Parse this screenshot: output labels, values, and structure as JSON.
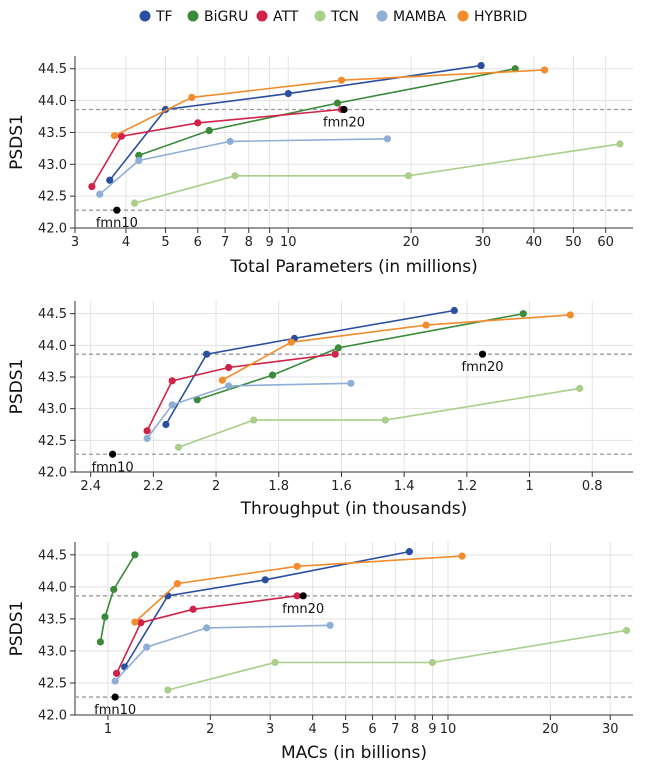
{
  "legend": [
    {
      "name": "TF",
      "color": "#2b4fa0"
    },
    {
      "name": "BiGRU",
      "color": "#3a8a3a"
    },
    {
      "name": "ATT",
      "color": "#d0234a"
    },
    {
      "name": "TCN",
      "color": "#a9cf8a"
    },
    {
      "name": "MAMBA",
      "color": "#8eaed6"
    },
    {
      "name": "HYBRID",
      "color": "#f28c2c"
    }
  ],
  "chart_data": [
    {
      "type": "line",
      "xscale": "log",
      "xreverse": false,
      "xlabel": "Total Parameters (in millions)",
      "ylabel": "PSDS1",
      "xlim": [
        3,
        70
      ],
      "ylim": [
        42.0,
        44.7
      ],
      "xticks": [
        3,
        4,
        5,
        6,
        7,
        8,
        9,
        10,
        20,
        30,
        40,
        50,
        60
      ],
      "xtick_labels": [
        "3",
        "4",
        "5",
        "6",
        "7",
        "8",
        "9",
        "10",
        "20",
        "30",
        "40",
        "50",
        "60"
      ],
      "yticks": [
        42.0,
        42.5,
        43.0,
        43.5,
        44.0,
        44.5
      ],
      "ytick_labels": [
        "42.0",
        "42.5",
        "43.0",
        "43.5",
        "44.0",
        "44.5"
      ],
      "grid": true,
      "hlines": [
        43.86,
        42.28
      ],
      "series": [
        {
          "name": "TF",
          "x": [
            3.65,
            5.0,
            10.0,
            29.7
          ],
          "y": [
            42.75,
            43.86,
            44.11,
            44.55
          ]
        },
        {
          "name": "BiGRU",
          "x": [
            4.3,
            6.4,
            13.2,
            36.0
          ],
          "y": [
            43.14,
            43.53,
            43.96,
            44.5
          ]
        },
        {
          "name": "ATT",
          "x": [
            3.3,
            3.9,
            6.0,
            13.5
          ],
          "y": [
            42.65,
            43.44,
            43.65,
            43.86
          ]
        },
        {
          "name": "TCN",
          "x": [
            4.2,
            7.4,
            19.7,
            65.0
          ],
          "y": [
            42.39,
            42.82,
            42.82,
            43.32
          ]
        },
        {
          "name": "MAMBA",
          "x": [
            3.45,
            4.3,
            7.2,
            17.5
          ],
          "y": [
            42.53,
            43.06,
            43.36,
            43.4
          ]
        },
        {
          "name": "HYBRID",
          "x": [
            3.75,
            5.8,
            13.5,
            42.5
          ],
          "y": [
            43.45,
            44.05,
            44.32,
            44.48
          ]
        }
      ],
      "annotations": [
        {
          "label": "fmn20",
          "x": 13.7,
          "y": 43.86
        },
        {
          "label": "fmn10",
          "x": 3.8,
          "y": 42.28
        }
      ]
    },
    {
      "type": "line",
      "xscale": "linear",
      "xreverse": true,
      "xlabel": "Throughput (in thousands)",
      "ylabel": "PSDS1",
      "xlim": [
        2.45,
        0.67
      ],
      "ylim": [
        42.0,
        44.7
      ],
      "xticks": [
        2.4,
        2.2,
        2.0,
        1.8,
        1.6,
        1.4,
        1.2,
        1.0,
        0.8
      ],
      "xtick_labels": [
        "2.4",
        "2.2",
        "2",
        "1.8",
        "1.6",
        "1.4",
        "1.2",
        "1",
        "0.8"
      ],
      "yticks": [
        42.0,
        42.5,
        43.0,
        43.5,
        44.0,
        44.5
      ],
      "ytick_labels": [
        "42.0",
        "42.5",
        "43.0",
        "43.5",
        "44.0",
        "44.5"
      ],
      "grid": true,
      "hlines": [
        43.86,
        42.28
      ],
      "series": [
        {
          "name": "TF",
          "x": [
            2.16,
            2.03,
            1.75,
            1.24
          ],
          "y": [
            42.75,
            43.86,
            44.11,
            44.55
          ]
        },
        {
          "name": "BiGRU",
          "x": [
            2.06,
            1.82,
            1.61,
            1.02
          ],
          "y": [
            43.14,
            43.53,
            43.96,
            44.5
          ]
        },
        {
          "name": "ATT",
          "x": [
            2.22,
            2.14,
            1.96,
            1.62
          ],
          "y": [
            42.65,
            43.44,
            43.65,
            43.86
          ]
        },
        {
          "name": "TCN",
          "x": [
            2.12,
            1.88,
            1.46,
            0.84
          ],
          "y": [
            42.39,
            42.82,
            42.82,
            43.32
          ]
        },
        {
          "name": "MAMBA",
          "x": [
            2.22,
            2.14,
            1.96,
            1.57
          ],
          "y": [
            42.53,
            43.06,
            43.36,
            43.4
          ]
        },
        {
          "name": "HYBRID",
          "x": [
            1.98,
            1.76,
            1.33,
            0.87
          ],
          "y": [
            43.45,
            44.05,
            44.32,
            44.48
          ]
        }
      ],
      "annotations": [
        {
          "label": "fmn20",
          "x": 1.15,
          "y": 43.86
        },
        {
          "label": "fmn10",
          "x": 2.33,
          "y": 42.28
        }
      ]
    },
    {
      "type": "line",
      "xscale": "log",
      "xreverse": false,
      "xlabel": "MACs (in billions)",
      "ylabel": "PSDS1",
      "xlim": [
        0.8,
        35
      ],
      "ylim": [
        42.0,
        44.7
      ],
      "xticks": [
        1,
        2,
        3,
        4,
        5,
        6,
        7,
        8,
        9,
        10,
        20,
        30
      ],
      "xtick_labels": [
        "1",
        "2",
        "3",
        "4",
        "5",
        "6",
        "7",
        "8",
        "9",
        "10",
        "20",
        "30"
      ],
      "yticks": [
        42.0,
        42.5,
        43.0,
        43.5,
        44.0,
        44.5
      ],
      "ytick_labels": [
        "42.0",
        "42.5",
        "43.0",
        "43.5",
        "44.0",
        "44.5"
      ],
      "grid": true,
      "hlines": [
        43.86,
        42.28
      ],
      "series": [
        {
          "name": "TF",
          "x": [
            1.12,
            1.5,
            2.9,
            7.7
          ],
          "y": [
            42.75,
            43.86,
            44.11,
            44.55
          ]
        },
        {
          "name": "BiGRU",
          "x": [
            0.95,
            0.98,
            1.04,
            1.2
          ],
          "y": [
            43.14,
            43.53,
            43.96,
            44.5
          ]
        },
        {
          "name": "ATT",
          "x": [
            1.06,
            1.25,
            1.78,
            3.6
          ],
          "y": [
            42.65,
            43.44,
            43.65,
            43.86
          ]
        },
        {
          "name": "TCN",
          "x": [
            1.5,
            3.1,
            9.0,
            33.5
          ],
          "y": [
            42.39,
            42.82,
            42.82,
            43.32
          ]
        },
        {
          "name": "MAMBA",
          "x": [
            1.05,
            1.3,
            1.95,
            4.5
          ],
          "y": [
            42.53,
            43.06,
            43.36,
            43.4
          ]
        },
        {
          "name": "HYBRID",
          "x": [
            1.2,
            1.6,
            3.6,
            11.0
          ],
          "y": [
            43.45,
            44.05,
            44.32,
            44.48
          ]
        }
      ],
      "annotations": [
        {
          "label": "fmn20",
          "x": 3.75,
          "y": 43.86
        },
        {
          "label": "fmn10",
          "x": 1.05,
          "y": 42.28
        }
      ]
    }
  ]
}
